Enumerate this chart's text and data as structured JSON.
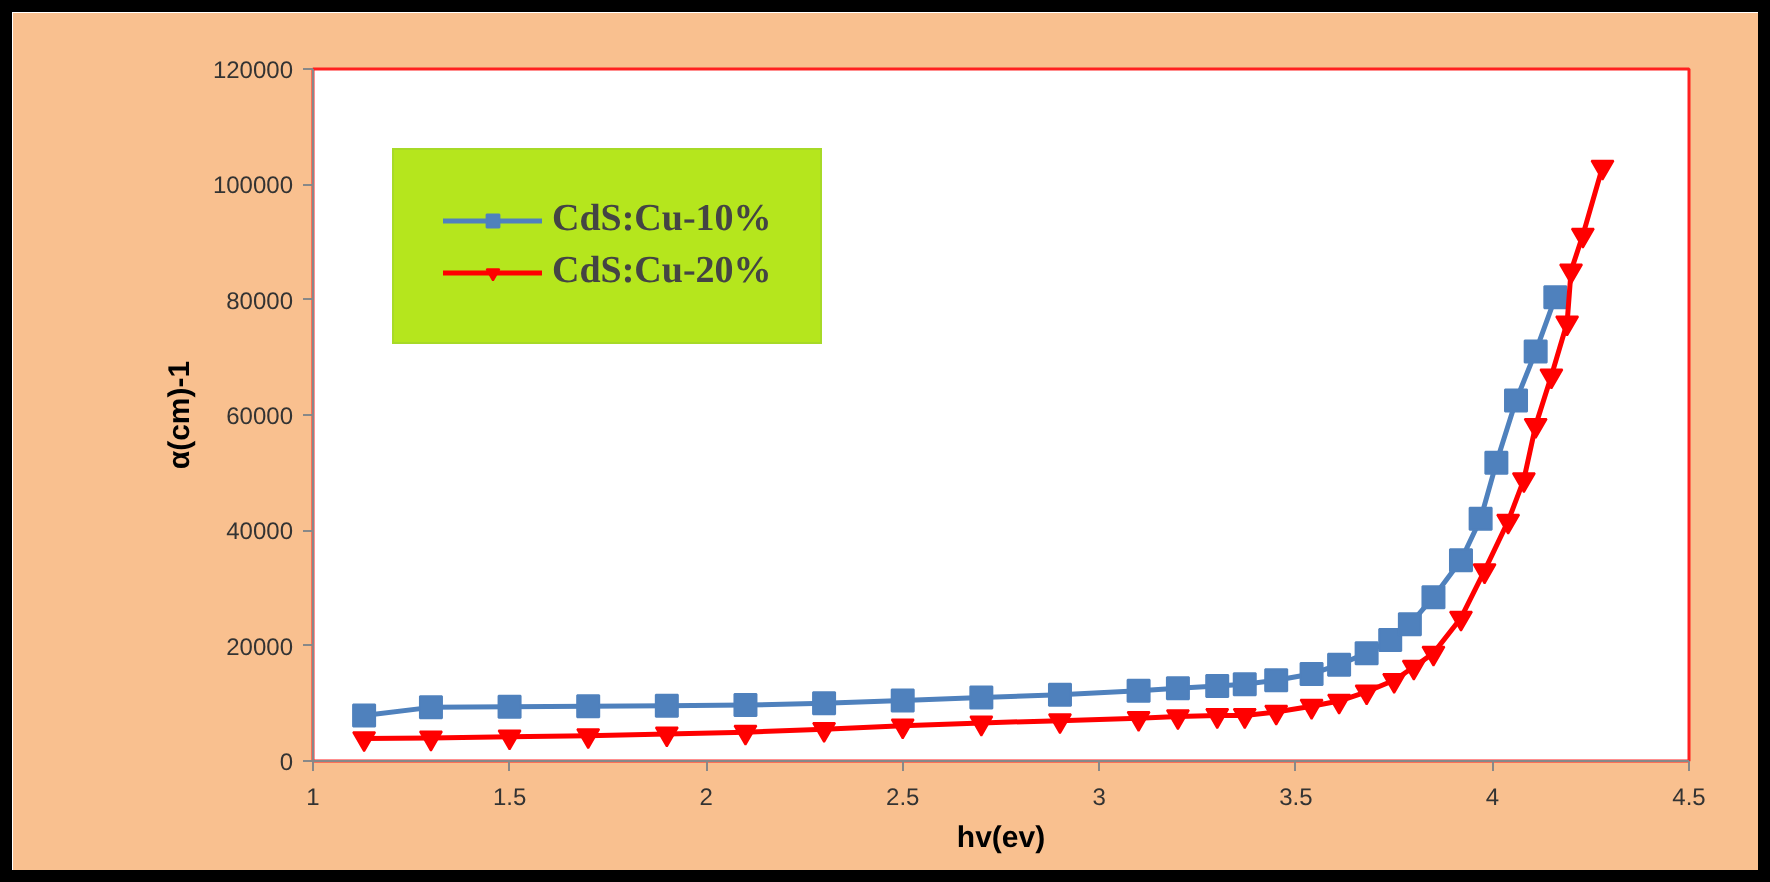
{
  "chart_data": {
    "type": "line",
    "xlabel": "hv(ev)",
    "ylabel": "α(cm)-1",
    "xlim": [
      1,
      4.5
    ],
    "xticks": [
      1,
      1.5,
      2,
      2.5,
      3,
      3.5,
      4,
      4.5
    ],
    "ylim": [
      0,
      120000
    ],
    "yticks": [
      0,
      20000,
      40000,
      60000,
      80000,
      100000,
      120000
    ],
    "grid": false,
    "legend": "top left",
    "series": [
      {
        "name": "CdS:Cu-10%",
        "color": "#4f81bd",
        "marker": "square",
        "x": [
          1.13,
          1.3,
          1.5,
          1.7,
          1.9,
          2.1,
          2.3,
          2.5,
          2.7,
          2.9,
          3.1,
          3.2,
          3.3,
          3.37,
          3.45,
          3.54,
          3.61,
          3.68,
          3.74,
          3.79,
          3.85,
          3.92,
          3.97,
          4.01,
          4.06,
          4.11,
          4.16
        ],
        "values": [
          7900,
          9300,
          9400,
          9500,
          9600,
          9700,
          10000,
          10500,
          11000,
          11500,
          12200,
          12600,
          13000,
          13300,
          14000,
          15100,
          16700,
          18700,
          21000,
          23700,
          28400,
          34800,
          42000,
          51700,
          62500,
          71000,
          80400
        ]
      },
      {
        "name": "CdS:Cu-20%",
        "color": "#ff0000",
        "marker": "triangle",
        "x": [
          1.13,
          1.3,
          1.5,
          1.7,
          1.9,
          2.1,
          2.3,
          2.5,
          2.7,
          2.9,
          3.1,
          3.2,
          3.3,
          3.37,
          3.45,
          3.54,
          3.61,
          3.68,
          3.75,
          3.8,
          3.85,
          3.92,
          3.98,
          4.04,
          4.08,
          4.11,
          4.15,
          4.19,
          4.2,
          4.23,
          4.28
        ],
        "values": [
          3900,
          4000,
          4200,
          4400,
          4700,
          5000,
          5500,
          6100,
          6600,
          7000,
          7400,
          7700,
          7900,
          7900,
          8500,
          9500,
          10400,
          12000,
          14000,
          16300,
          18700,
          24800,
          33000,
          41600,
          48800,
          58200,
          66800,
          76000,
          85000,
          91200,
          103000
        ]
      }
    ]
  }
}
